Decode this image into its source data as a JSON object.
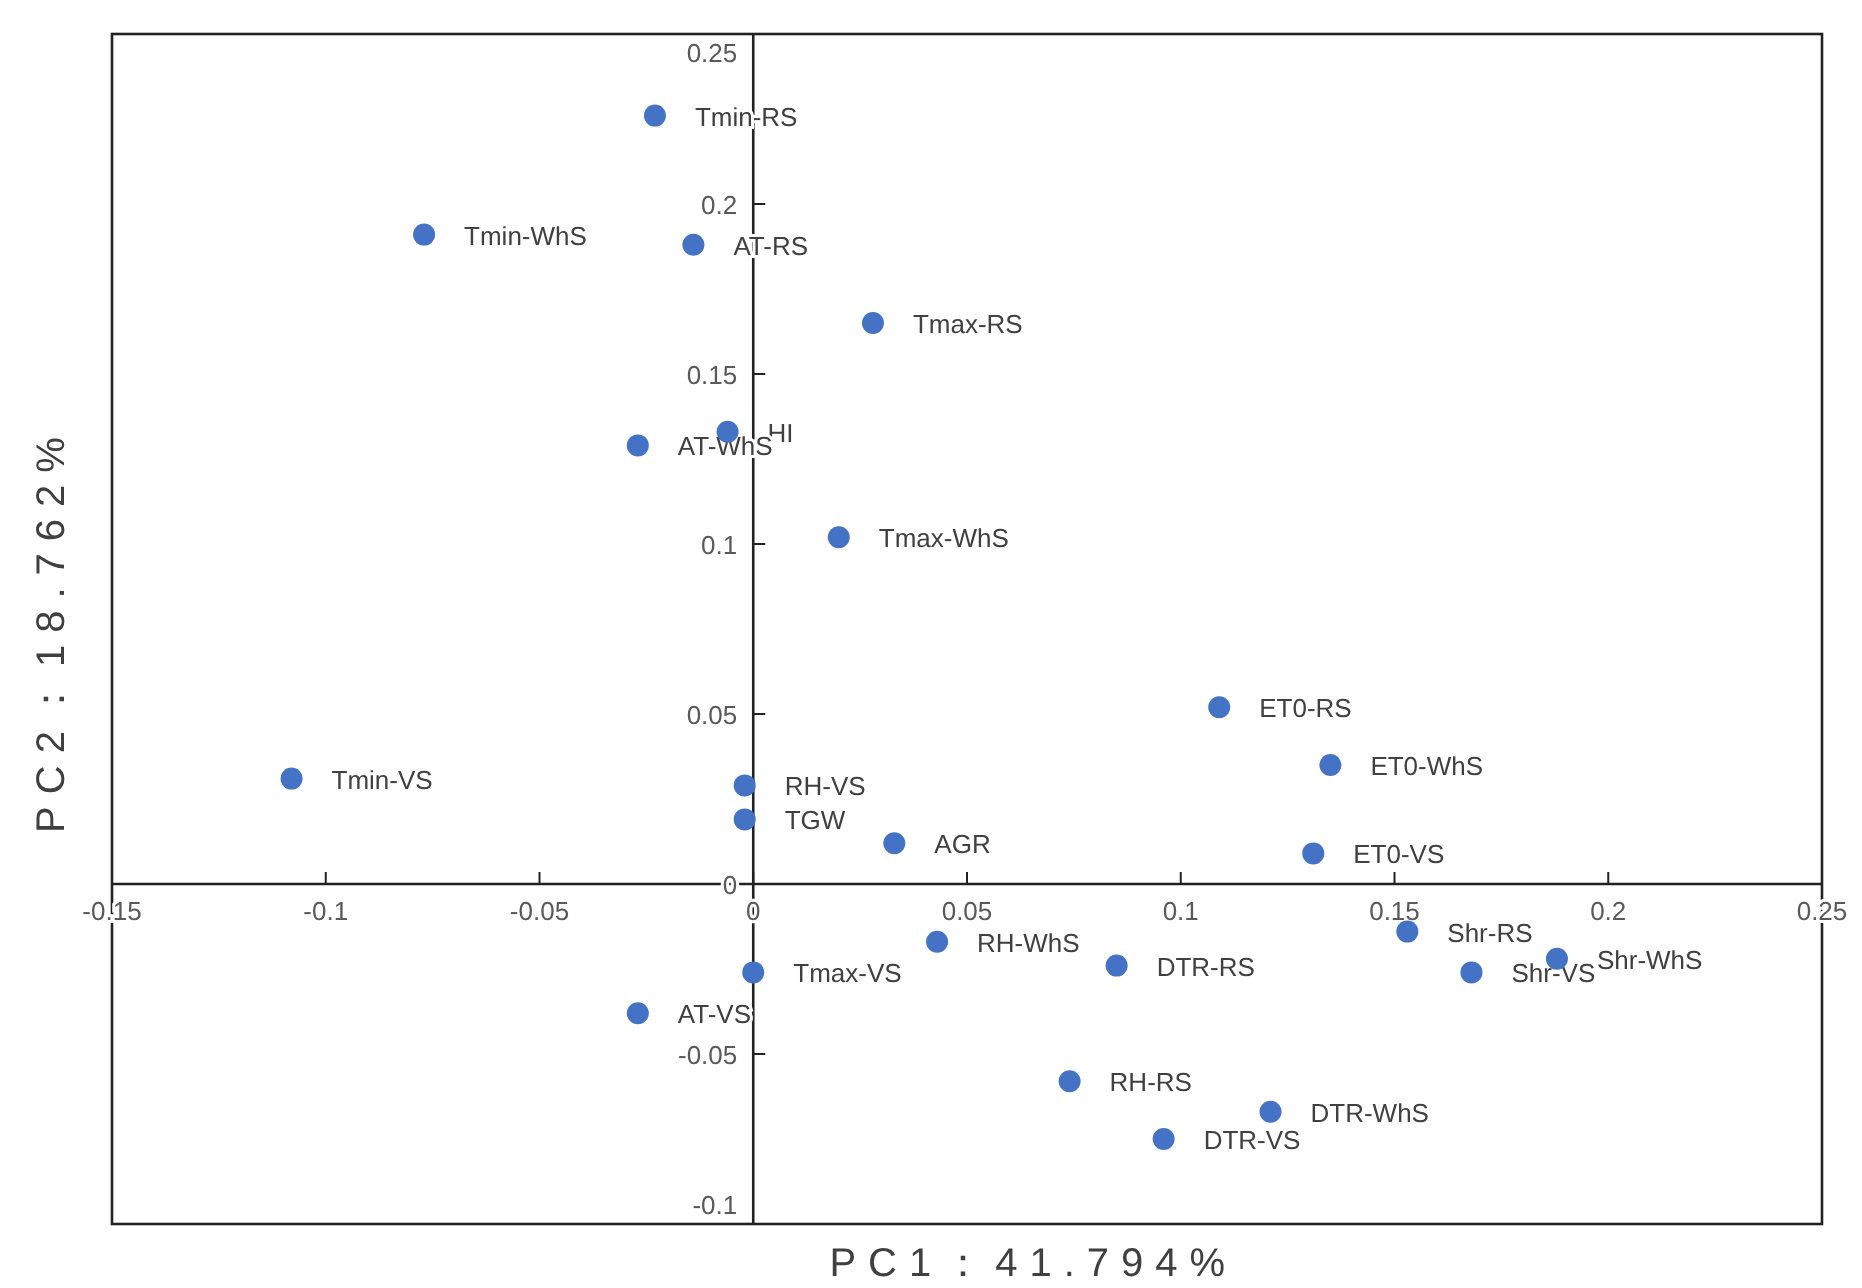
{
  "chart_data": {
    "type": "scatter",
    "xlabel": "PC1：41.794%",
    "ylabel": "PC2：18.762%",
    "xlim": [
      -0.15,
      0.25
    ],
    "ylim": [
      -0.1,
      0.25
    ],
    "xticks": [
      -0.15,
      -0.1,
      -0.05,
      0,
      0.05,
      0.1,
      0.15,
      0.2,
      0.25
    ],
    "yticks": [
      -0.1,
      -0.05,
      0,
      0.05,
      0.1,
      0.15,
      0.2,
      0.25
    ],
    "grid": false,
    "marker": "circle",
    "series": [
      {
        "color": "#4472c4",
        "x": [
          -0.023,
          -0.077,
          -0.014,
          0.028,
          -0.006,
          -0.027,
          0.02,
          0.109,
          0.135,
          -0.108,
          -0.002,
          -0.002,
          0.033,
          0.131,
          0.043,
          0.153,
          0.085,
          0.188,
          0.168,
          0.0,
          -0.027,
          0.074,
          0.121,
          0.096
        ],
        "values": [
          0.226,
          0.191,
          0.188,
          0.165,
          0.133,
          0.129,
          0.102,
          0.052,
          0.035,
          0.031,
          0.029,
          0.019,
          0.012,
          0.009,
          -0.017,
          -0.014,
          -0.024,
          -0.022,
          -0.026,
          -0.026,
          -0.038,
          -0.058,
          -0.067,
          -0.075
        ]
      }
    ],
    "annotations": [
      {
        "text": "Tmin-RS",
        "x": -0.023,
        "y": 0.226
      },
      {
        "text": "Tmin-WhS",
        "x": -0.077,
        "y": 0.191
      },
      {
        "text": "AT-RS",
        "x": -0.014,
        "y": 0.188
      },
      {
        "text": "Tmax-RS",
        "x": 0.028,
        "y": 0.165
      },
      {
        "text": "HI",
        "x": -0.006,
        "y": 0.133
      },
      {
        "text": "AT-WhS",
        "x": -0.027,
        "y": 0.129
      },
      {
        "text": "Tmax-WhS",
        "x": 0.02,
        "y": 0.102
      },
      {
        "text": "ET0-RS",
        "x": 0.109,
        "y": 0.052
      },
      {
        "text": "ET0-WhS",
        "x": 0.135,
        "y": 0.035
      },
      {
        "text": "Tmin-VS",
        "x": -0.108,
        "y": 0.031
      },
      {
        "text": "RH-VS",
        "x": -0.002,
        "y": 0.029
      },
      {
        "text": "TGW",
        "x": -0.002,
        "y": 0.019
      },
      {
        "text": "AGR",
        "x": 0.033,
        "y": 0.012
      },
      {
        "text": "ET0-VS",
        "x": 0.131,
        "y": 0.009
      },
      {
        "text": "RH-WhS",
        "x": 0.043,
        "y": -0.017
      },
      {
        "text": "Shr-RS",
        "x": 0.153,
        "y": -0.014
      },
      {
        "text": "DTR-RS",
        "x": 0.085,
        "y": -0.024
      },
      {
        "text": "Shr-WhS",
        "x": 0.188,
        "y": -0.022
      },
      {
        "text": "Shr-VS",
        "x": 0.168,
        "y": -0.026
      },
      {
        "text": "Tmax-VS",
        "x": 0.0,
        "y": -0.026
      },
      {
        "text": "AT-VS",
        "x": -0.027,
        "y": -0.038
      },
      {
        "text": "RH-RS",
        "x": 0.074,
        "y": -0.058
      },
      {
        "text": "DTR-WhS",
        "x": 0.121,
        "y": -0.067
      },
      {
        "text": "DTR-VS",
        "x": 0.096,
        "y": -0.075
      }
    ]
  }
}
